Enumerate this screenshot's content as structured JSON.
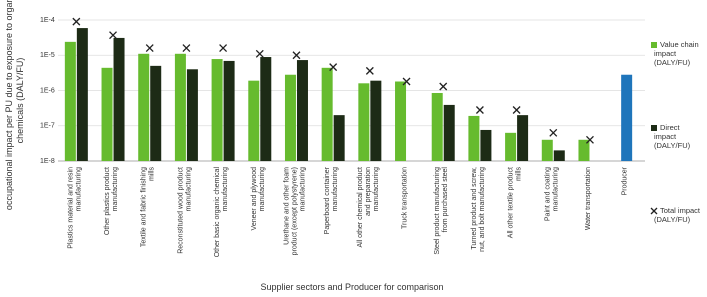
{
  "chart_data": {
    "type": "bar",
    "y_label": [
      "occupational impact per PU due to exposure to organic",
      "chemicals (DALY/FU)"
    ],
    "x_label": "Supplier sectors and Producer for comparison",
    "log_scale": true,
    "grid": true,
    "legend": "right",
    "ylim": [
      1e-08,
      0.0001
    ],
    "yticks": [
      {
        "value": 1e-08,
        "label": "1E-8"
      },
      {
        "value": 1e-07,
        "label": "1E-7"
      },
      {
        "value": 1e-06,
        "label": "1E-6"
      },
      {
        "value": 1e-05,
        "label": "1E-5"
      },
      {
        "value": 0.0001,
        "label": "1E-4"
      }
    ],
    "categories": [
      "Plastics material and resin manufacturing",
      "Other plastics product manufacturing",
      "Textile and fabric finishing mills",
      "Reconstituted wood product manufacturing",
      "Other basic organic chemical manufacturing",
      "Veneer and plywood manufacturing",
      "Urethane and other foam product (except polystyrene) manufacturing",
      "Paperboard container manufacturing",
      "All other chemical product and preparation manufacturing",
      "Truck transportation",
      "Steel product manufacturing from purchased steel",
      "Turned product and screw, nut, and bolt manufacturing",
      "All other textile product mills",
      "Paint and coating manufacturing",
      "Water transportation",
      "Producer"
    ],
    "series": [
      {
        "name": "Value chain impact (DALY/FU)",
        "color": "#66bb2e",
        "offset": -1,
        "values": [
          2.4e-05,
          4.4e-06,
          1.1e-05,
          1.1e-05,
          7.8e-06,
          1.9e-06,
          2.8e-06,
          4.4e-06,
          1.6e-06,
          1.8e-06,
          8.5e-07,
          1.9e-07,
          6.3e-08,
          4e-08,
          4e-08,
          null
        ]
      },
      {
        "name": "Direct impact (DALY/FU)",
        "color": "#1d2b16",
        "offset": 1,
        "values": [
          5.9e-05,
          3.1e-05,
          5e-06,
          4e-06,
          6.9e-06,
          8.9e-06,
          7.3e-06,
          2e-07,
          1.9e-06,
          null,
          3.9e-07,
          7.6e-08,
          2e-07,
          2e-08,
          null,
          null
        ]
      },
      {
        "name": "Total impact (DALY/FU)",
        "color": "#222222",
        "marker": "x",
        "offset": 0,
        "values": [
          9e-05,
          3.7e-05,
          1.6e-05,
          1.6e-05,
          1.6e-05,
          1.1e-05,
          1e-05,
          4.6e-06,
          3.6e-06,
          1.8e-06,
          1.3e-06,
          2.8e-07,
          2.8e-07,
          6.3e-08,
          4e-08,
          null
        ]
      },
      {
        "name": "Producer",
        "color": "#1f75bb",
        "offset": 0,
        "in_legend": false,
        "values": [
          null,
          null,
          null,
          null,
          null,
          null,
          null,
          null,
          null,
          null,
          null,
          null,
          null,
          null,
          null,
          2.8e-06
        ]
      }
    ]
  }
}
